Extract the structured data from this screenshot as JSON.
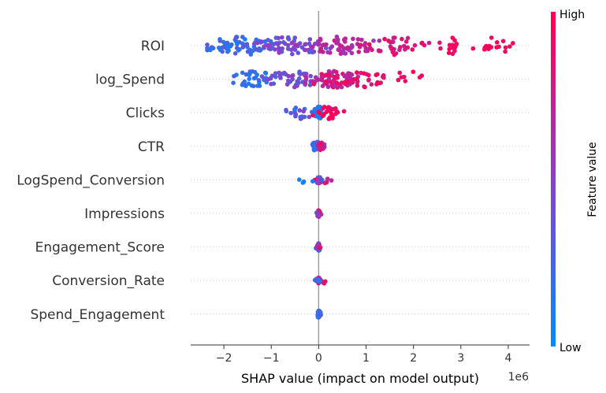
{
  "chart_data": {
    "type": "scatter",
    "subtype": "shap_beeswarm",
    "features": [
      "ROI",
      "log_Spend",
      "Clicks",
      "CTR",
      "LogSpend_Conversion",
      "Impressions",
      "Engagement_Score",
      "Conversion_Rate",
      "Spend_Engagement"
    ],
    "xlabel": "SHAP value (impact on model output)",
    "x_scale_label": "1e6",
    "xlim": [
      -2.7,
      4.45
    ],
    "x_ticks": [
      -2,
      -1,
      0,
      1,
      2,
      3,
      4
    ],
    "x_tick_labels": [
      "−2",
      "−1",
      "0",
      "1",
      "2",
      "3",
      "4"
    ],
    "colorbar": {
      "label": "Feature value",
      "high_label": "High",
      "low_label": "Low",
      "low_color": "#008bfb",
      "mid_color": "#8b40c9",
      "high_color": "#ff0052"
    },
    "grid": false,
    "zero_line_color": "#999999",
    "distributions": [
      {
        "feature": "ROI",
        "min": -2.35,
        "max": 4.1,
        "spread": 0.55,
        "clusters": [
          {
            "center": -1.6,
            "sd": 0.4,
            "count": 70,
            "color_low": 0.05,
            "color_high": 0.35
          },
          {
            "center": -0.6,
            "sd": 0.4,
            "count": 60,
            "color_low": 0.3,
            "color_high": 0.55
          },
          {
            "center": 0.5,
            "sd": 0.45,
            "count": 60,
            "color_low": 0.55,
            "color_high": 0.8
          },
          {
            "center": 1.6,
            "sd": 0.35,
            "count": 35,
            "color_low": 0.75,
            "color_high": 0.95
          },
          {
            "center": 2.85,
            "sd": 0.12,
            "count": 12,
            "color_low": 0.9,
            "color_high": 1.0
          },
          {
            "center": 3.75,
            "sd": 0.17,
            "count": 16,
            "color_low": 0.9,
            "color_high": 1.0
          }
        ]
      },
      {
        "feature": "log_Spend",
        "min": -1.8,
        "max": 2.25,
        "spread": 0.5,
        "clusters": [
          {
            "center": -1.35,
            "sd": 0.25,
            "count": 35,
            "color_low": 0.05,
            "color_high": 0.3
          },
          {
            "center": -0.5,
            "sd": 0.35,
            "count": 45,
            "color_low": 0.3,
            "color_high": 0.55
          },
          {
            "center": 0.35,
            "sd": 0.3,
            "count": 75,
            "color_low": 0.6,
            "color_high": 0.95
          },
          {
            "center": 1.0,
            "sd": 0.25,
            "count": 25,
            "color_low": 0.8,
            "color_high": 1.0
          },
          {
            "center": 1.9,
            "sd": 0.3,
            "count": 8,
            "color_low": 0.9,
            "color_high": 1.0
          }
        ]
      },
      {
        "feature": "Clicks",
        "min": -0.7,
        "max": 0.65,
        "spread": 0.38,
        "clusters": [
          {
            "center": -0.35,
            "sd": 0.15,
            "count": 20,
            "color_low": 0.05,
            "color_high": 0.55
          },
          {
            "center": 0.0,
            "sd": 0.05,
            "count": 45,
            "color_low": 0.05,
            "color_high": 0.25
          },
          {
            "center": 0.2,
            "sd": 0.14,
            "count": 28,
            "color_low": 0.85,
            "color_high": 1.0
          }
        ]
      },
      {
        "feature": "CTR",
        "min": -0.25,
        "max": 0.12,
        "spread": 0.28,
        "clusters": [
          {
            "center": -0.05,
            "sd": 0.07,
            "count": 25,
            "color_low": 0.05,
            "color_high": 0.35
          },
          {
            "center": 0.04,
            "sd": 0.04,
            "count": 20,
            "color_low": 0.6,
            "color_high": 1.0
          }
        ]
      },
      {
        "feature": "LogSpend_Conversion",
        "min": -0.45,
        "max": 0.28,
        "spread": 0.2,
        "clusters": [
          {
            "center": 0.0,
            "sd": 0.04,
            "count": 35,
            "color_low": 0.05,
            "color_high": 1.0
          },
          {
            "center": -0.3,
            "sd": 0.1,
            "count": 5,
            "color_low": 0.05,
            "color_high": 0.25
          },
          {
            "center": 0.15,
            "sd": 0.07,
            "count": 5,
            "color_low": 0.6,
            "color_high": 1.0
          }
        ]
      },
      {
        "feature": "Impressions",
        "min": -0.08,
        "max": 0.08,
        "spread": 0.2,
        "clusters": [
          {
            "center": 0.0,
            "sd": 0.025,
            "count": 35,
            "color_low": 0.05,
            "color_high": 1.0
          }
        ]
      },
      {
        "feature": "Engagement_Score",
        "min": -0.08,
        "max": 0.08,
        "spread": 0.22,
        "clusters": [
          {
            "center": 0.0,
            "sd": 0.02,
            "count": 40,
            "color_low": 0.05,
            "color_high": 1.0
          }
        ]
      },
      {
        "feature": "Conversion_Rate",
        "min": -0.08,
        "max": 0.15,
        "spread": 0.2,
        "clusters": [
          {
            "center": 0.0,
            "sd": 0.03,
            "count": 35,
            "color_low": 0.05,
            "color_high": 1.0
          },
          {
            "center": 0.12,
            "sd": 0.02,
            "count": 2,
            "color_low": 0.9,
            "color_high": 1.0
          }
        ]
      },
      {
        "feature": "Spend_Engagement",
        "min": -0.08,
        "max": 0.08,
        "spread": 0.22,
        "clusters": [
          {
            "center": 0.0,
            "sd": 0.02,
            "count": 40,
            "color_low": 0.05,
            "color_high": 0.5
          }
        ]
      }
    ]
  }
}
